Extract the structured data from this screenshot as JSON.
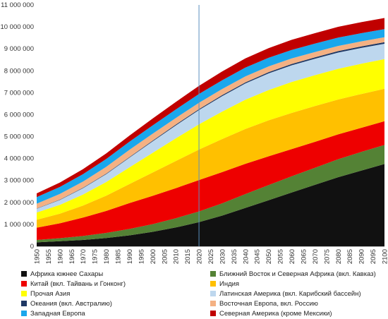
{
  "chart_data": {
    "type": "area",
    "stacked": true,
    "x": [
      1950,
      1960,
      1970,
      1980,
      1990,
      2000,
      2010,
      2020,
      2030,
      2040,
      2050,
      2060,
      2070,
      2080,
      2090,
      2100
    ],
    "series": [
      {
        "name": "Африка южнее Сахары",
        "color": "#111111",
        "values": [
          180000,
          230000,
          290000,
          380000,
          500000,
          660000,
          860000,
          1100000,
          1400000,
          1750000,
          2100000,
          2450000,
          2800000,
          3150000,
          3450000,
          3750000
        ]
      },
      {
        "name": "Ближний Восток и Северная Африка (вкл. Кавказ)",
        "color": "#548235",
        "values": [
          110000,
          140000,
          180000,
          230000,
          290000,
          350000,
          420000,
          490000,
          560000,
          630000,
          690000,
          740000,
          780000,
          820000,
          850000,
          870000
        ]
      },
      {
        "name": "Китай (вкл. Тайвань и Гонконг)",
        "color": "#ee0000",
        "values": [
          560000,
          680000,
          840000,
          1000000,
          1180000,
          1290000,
          1370000,
          1430000,
          1420000,
          1380000,
          1310000,
          1240000,
          1180000,
          1130000,
          1100000,
          1080000
        ]
      },
      {
        "name": "Индия",
        "color": "#ffc000",
        "values": [
          360000,
          440000,
          550000,
          700000,
          870000,
          1060000,
          1240000,
          1390000,
          1510000,
          1590000,
          1640000,
          1650000,
          1630000,
          1590000,
          1540000,
          1480000
        ]
      },
      {
        "name": "Прочая Азия",
        "color": "#ffff00",
        "values": [
          330000,
          400000,
          500000,
          620000,
          760000,
          900000,
          1030000,
          1150000,
          1250000,
          1330000,
          1380000,
          1410000,
          1410000,
          1400000,
          1380000,
          1350000
        ]
      },
      {
        "name": "Латинская Америка (вкл. Карибский бассейн)",
        "color": "#bdd7ee",
        "values": [
          170000,
          220000,
          290000,
          360000,
          440000,
          520000,
          590000,
          650000,
          700000,
          740000,
          760000,
          760000,
          750000,
          740000,
          720000,
          700000
        ]
      },
      {
        "name": "Океания (вкл. Австралию)",
        "color": "#1f3864",
        "values": [
          13000,
          16000,
          20000,
          23000,
          27000,
          31000,
          37000,
          43000,
          48000,
          53000,
          57000,
          61000,
          64000,
          67000,
          69000,
          71000
        ]
      },
      {
        "name": "Восточная Европа, вкл. Россию",
        "color": "#f4b183",
        "values": [
          220000,
          260000,
          280000,
          310000,
          330000,
          320000,
          300000,
          290000,
          280000,
          270000,
          260000,
          250000,
          240000,
          235000,
          230000,
          225000
        ]
      },
      {
        "name": "Западная Европа",
        "color": "#1aa7ec",
        "values": [
          300000,
          320000,
          340000,
          360000,
          370000,
          380000,
          390000,
          400000,
          400000,
          400000,
          395000,
          390000,
          385000,
          380000,
          375000,
          370000
        ]
      },
      {
        "name": "Северная Америка (кроме Мексики)",
        "color": "#c00000",
        "values": [
          170000,
          200000,
          230000,
          250000,
          280000,
          310000,
          340000,
          370000,
          400000,
          420000,
          440000,
          460000,
          475000,
          490000,
          500000,
          510000
        ]
      }
    ],
    "ylim": [
      0,
      11000000
    ],
    "yticks": [
      0,
      1000000,
      2000000,
      3000000,
      4000000,
      5000000,
      6000000,
      7000000,
      8000000,
      9000000,
      10000000,
      11000000
    ],
    "ytick_labels": [
      "0",
      "1 000 000",
      "2 000 000",
      "3 000 000",
      "4 000 000",
      "5 000 000",
      "6 000 000",
      "7 000 000",
      "8 000 000",
      "9 000 000",
      "10 000 000",
      "11 000 000"
    ],
    "xticks": [
      1950,
      1955,
      1960,
      1965,
      1970,
      1975,
      1980,
      1985,
      1990,
      1995,
      2000,
      2005,
      2010,
      2015,
      2020,
      2025,
      2030,
      2035,
      2040,
      2045,
      2050,
      2055,
      2060,
      2065,
      2070,
      2075,
      2080,
      2085,
      2090,
      2095,
      2100
    ],
    "xlim": [
      1950,
      2100
    ],
    "marker_year": 2020,
    "grid": false,
    "legend_placement": "bottom"
  }
}
